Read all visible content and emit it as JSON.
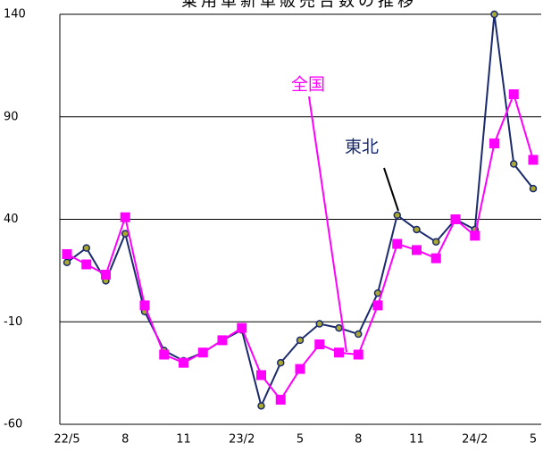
{
  "chart_data": {
    "type": "line",
    "title": "乗用車新車販売台数の推移",
    "categories": [
      "22/5",
      null,
      null,
      "8",
      null,
      null,
      "11",
      null,
      null,
      "23/2",
      null,
      null,
      "5",
      null,
      null,
      "8",
      null,
      null,
      "11",
      null,
      null,
      "24/2",
      null,
      null,
      "5"
    ],
    "series": [
      {
        "name": "東北",
        "color": "#1a2a6c",
        "values": [
          19,
          26,
          10,
          33,
          -5,
          -24,
          -29,
          -25,
          -19,
          -14,
          -51,
          -30,
          -19,
          -11,
          -13,
          -16,
          4,
          42,
          35,
          29,
          40,
          35,
          140,
          67,
          55
        ]
      },
      {
        "name": "全国",
        "color": "#ff00ff",
        "values": [
          23,
          18,
          13,
          41,
          -2,
          -26,
          -30,
          -25,
          -19,
          -13,
          -36,
          -48,
          -33,
          -21,
          -25,
          -26,
          -2,
          28,
          25,
          21,
          40,
          32,
          77,
          101,
          69
        ]
      }
    ],
    "ylim": [
      -60,
      140
    ],
    "yticks": [
      -60,
      -10,
      40,
      90,
      140
    ],
    "grid": true
  }
}
